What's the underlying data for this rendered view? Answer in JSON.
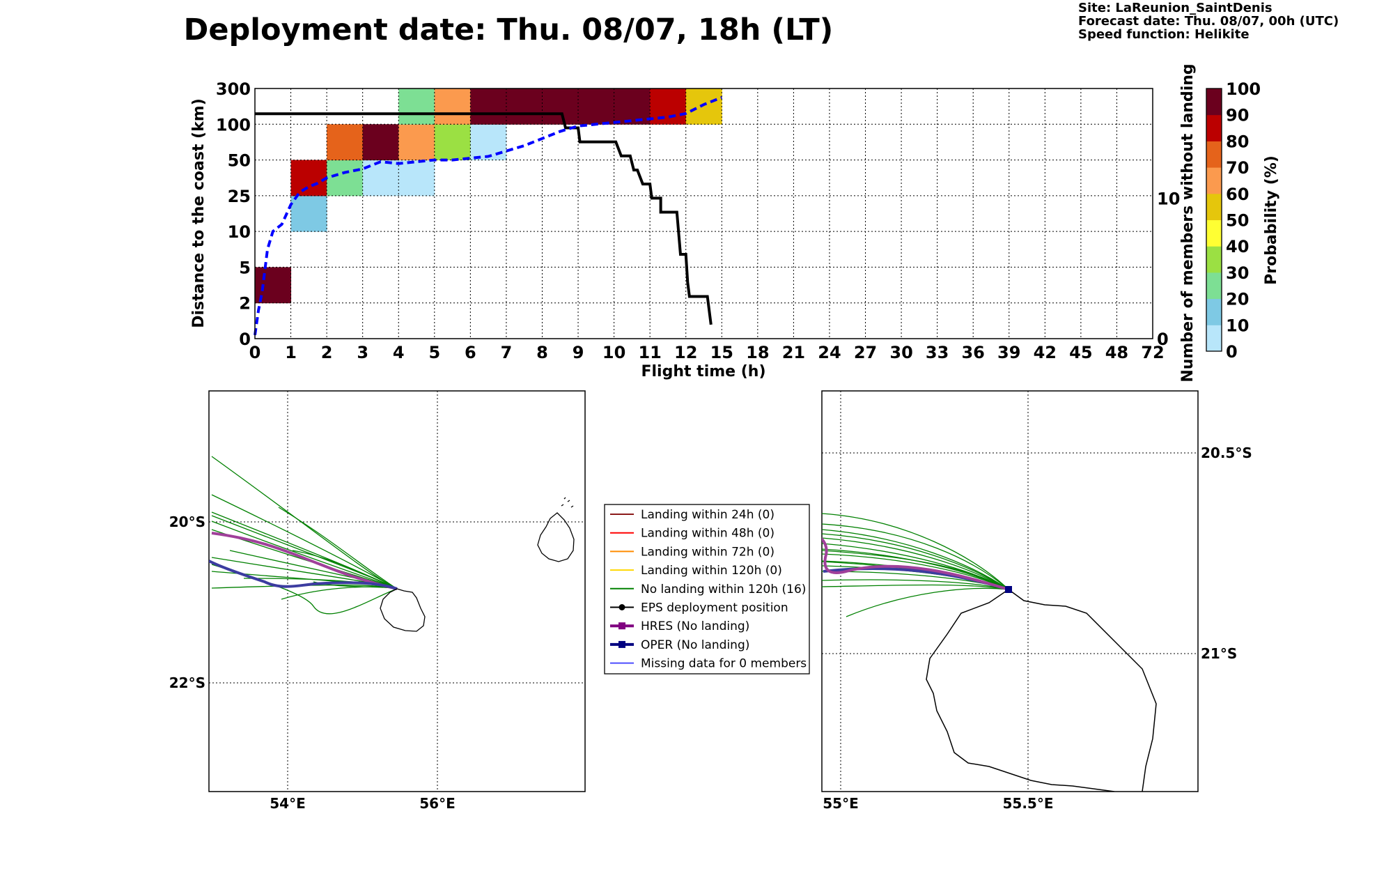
{
  "title": "Deployment date: Thu. 08/07, 18h (LT)",
  "site_info": {
    "site": "Site: LaReunion_SaintDenis",
    "forecast": "Forecast date: Thu. 08/07, 00h (UTC)",
    "speed": "Speed function: Helikite"
  },
  "chart_data": [
    {
      "type": "heatmap",
      "xlabel": "Flight time (h)",
      "ylabel": "Distance to the coast (km)",
      "y2label": "Number of members without landing",
      "x_ticks": [
        "0",
        "1",
        "2",
        "3",
        "4",
        "5",
        "6",
        "7",
        "8",
        "9",
        "10",
        "11",
        "12",
        "15",
        "18",
        "21",
        "24",
        "27",
        "30",
        "33",
        "36",
        "39",
        "42",
        "45",
        "48",
        "72"
      ],
      "y_ticks": [
        "0",
        "2",
        "5",
        "10",
        "25",
        "50",
        "100",
        "300"
      ],
      "y2_ticks": [
        "0",
        "10"
      ],
      "y2lim": [
        0,
        17.8
      ],
      "grid": true,
      "colorbar": {
        "label": "Probability (%)",
        "ticks": [
          "0",
          "10",
          "20",
          "30",
          "40",
          "50",
          "60",
          "70",
          "80",
          "90",
          "100"
        ],
        "colors": [
          "#b8e6fa",
          "#7ec9e4",
          "#7ddf94",
          "#9be043",
          "#ffff33",
          "#e5c60c",
          "#fb9a4e",
          "#e5631b",
          "#bb0000",
          "#6b001e"
        ]
      },
      "cells": [
        {
          "x": 0,
          "y": 1,
          "p": 100
        },
        {
          "x": 1,
          "y": 3,
          "p": 15
        },
        {
          "x": 1,
          "y": 4,
          "p": 85
        },
        {
          "x": 2,
          "y": 4,
          "p": 25
        },
        {
          "x": 2,
          "y": 5,
          "p": 75
        },
        {
          "x": 3,
          "y": 4,
          "p": 5
        },
        {
          "x": 3,
          "y": 5,
          "p": 95
        },
        {
          "x": 4,
          "y": 4,
          "p": 5
        },
        {
          "x": 4,
          "y": 5,
          "p": 65
        },
        {
          "x": 4,
          "y": 6,
          "p": 25
        },
        {
          "x": 5,
          "y": 5,
          "p": 35
        },
        {
          "x": 5,
          "y": 6,
          "p": 65
        },
        {
          "x": 6,
          "y": 5,
          "p": 5
        },
        {
          "x": 6,
          "y": 6,
          "p": 95
        },
        {
          "x": 7,
          "y": 6,
          "p": 95
        },
        {
          "x": 8,
          "y": 6,
          "p": 95
        },
        {
          "x": 9,
          "y": 6,
          "p": 95
        },
        {
          "x": 10,
          "y": 6,
          "p": 95
        },
        {
          "x": 11,
          "y": 6,
          "p": 85
        },
        {
          "x": 12,
          "y": 6,
          "p": 55
        }
      ],
      "mean_distance_line": {
        "color": "#0000ff",
        "x": [
          0,
          0.1,
          0.2,
          0.35,
          0.5,
          0.75,
          1,
          1.25,
          1.5,
          1.75,
          2,
          2.5,
          3,
          3.5,
          4,
          4.5,
          5,
          5.5,
          6,
          6.5,
          7,
          7.5,
          8,
          8.5,
          9,
          9.5,
          10,
          10.5,
          11,
          11.5,
          12,
          12.5,
          13
        ],
        "y": [
          0.1,
          0.8,
          1.3,
          2.5,
          3.0,
          3.2,
          3.75,
          4.1,
          4.25,
          4.35,
          4.5,
          4.65,
          4.75,
          4.95,
          4.9,
          4.95,
          5.0,
          5.0,
          5.05,
          5.1,
          5.25,
          5.4,
          5.6,
          5.8,
          5.95,
          6.0,
          6.05,
          6.1,
          6.15,
          6.2,
          6.3,
          6.55,
          6.75
        ]
      },
      "members_line": {
        "color": "#000000",
        "x": [
          0,
          8.55,
          8.65,
          9.0,
          9.05,
          10.05,
          10.2,
          10.45,
          10.55,
          10.65,
          10.8,
          11.0,
          11.05,
          11.3,
          11.3,
          11.75,
          11.85,
          12.0,
          12.05,
          12.1,
          12.6,
          12.65,
          12.7
        ],
        "y": [
          16,
          16,
          15,
          15,
          14,
          14,
          13,
          13,
          12,
          12,
          11,
          11,
          10,
          10,
          9,
          9,
          6,
          6,
          4,
          3,
          3,
          2,
          1
        ]
      }
    }
  ],
  "maps": {
    "left": {
      "lat_ticks": [
        "20°S",
        "22°S"
      ],
      "lon_ticks": [
        "54°E",
        "56°E"
      ]
    },
    "right": {
      "lat_ticks": [
        "20.5°S",
        "21°S"
      ],
      "lon_ticks": [
        "55°E",
        "55.5°E"
      ]
    }
  },
  "legend": {
    "items": [
      {
        "label": "Landing within 24h (0)",
        "color": "#8b1a1a",
        "marker": "none"
      },
      {
        "label": "Landing within 48h (0)",
        "color": "#ff0000",
        "marker": "none"
      },
      {
        "label": "Landing within 72h (0)",
        "color": "#ff8c00",
        "marker": "none"
      },
      {
        "label": "Landing within 120h (0)",
        "color": "#ffd700",
        "marker": "none"
      },
      {
        "label": "No landing within 120h (16)",
        "color": "#008000",
        "marker": "none"
      },
      {
        "label": "EPS deployment position",
        "color": "#000000",
        "marker": "circle"
      },
      {
        "label": "HRES (No landing)",
        "color": "#800080",
        "marker": "square"
      },
      {
        "label": "OPER (No landing)",
        "color": "#000080",
        "marker": "square"
      },
      {
        "label": "Missing data for 0 members",
        "color": "#4d4dff",
        "marker": "none"
      }
    ]
  }
}
